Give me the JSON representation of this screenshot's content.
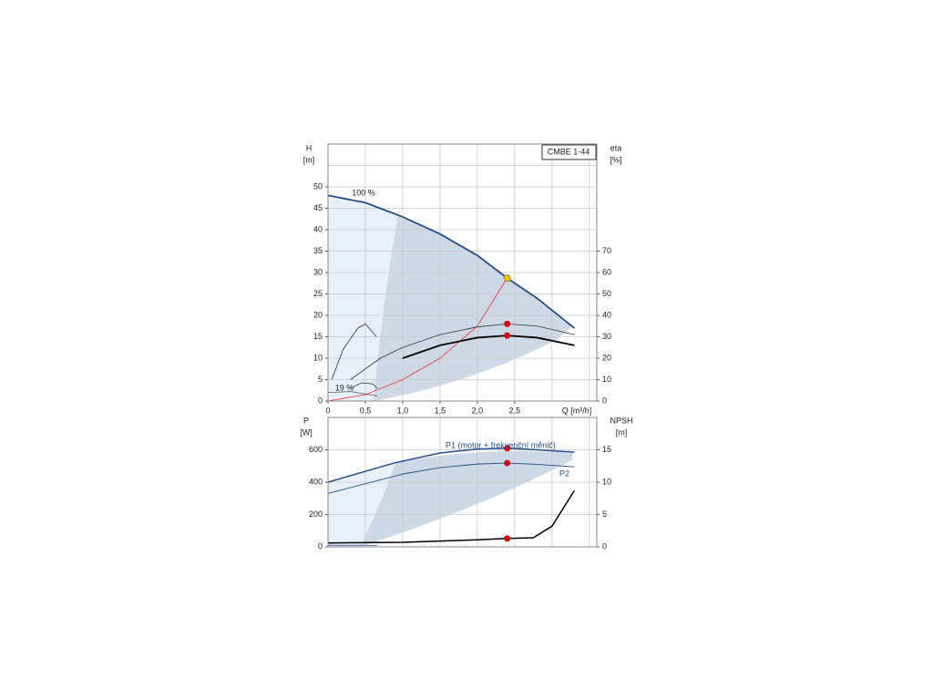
{
  "chart_data": [
    {
      "type": "line",
      "title": "CMBE 1-44",
      "y_label": "H",
      "y_unit": "[m]",
      "y2_label": "eta",
      "y2_unit": "[%]",
      "x_label": "Q [m³/h]",
      "xlim": [
        0,
        3.6
      ],
      "xgrid": [
        0,
        0.5,
        1.0,
        1.5,
        2.0,
        2.5,
        3.0,
        3.5
      ],
      "xticks": [
        0,
        {
          "value": 0.5,
          "label": "0,5"
        },
        {
          "value": 1.0,
          "label": "1,0"
        },
        {
          "value": 1.5,
          "label": "1,5"
        },
        {
          "value": 2.0,
          "label": "2,0"
        },
        {
          "value": 2.5,
          "label": "2,5"
        }
      ],
      "ylim": [
        0,
        60
      ],
      "yticks": [
        0,
        5,
        10,
        15,
        20,
        25,
        30,
        35,
        40,
        45,
        50
      ],
      "ygrid": [
        5,
        10,
        15,
        20,
        25,
        30,
        35,
        40,
        45,
        50,
        55
      ],
      "y2lim": [
        0,
        120
      ],
      "y2ticks": [
        0,
        10,
        20,
        30,
        40,
        50,
        60,
        70
      ],
      "annotations": [
        "100 %",
        "19 %"
      ],
      "series": [
        {
          "color": "#1f4e8c",
          "width": 1.8,
          "x": [
            0,
            0.5,
            1.0,
            1.5,
            2.0,
            2.4,
            2.8,
            3.3
          ],
          "values": [
            48,
            46.3,
            43,
            39,
            34,
            28.7,
            24,
            17
          ]
        },
        {
          "color": "#555555",
          "width": 0.8,
          "x": [
            0,
            0.3,
            0.66
          ],
          "values": [
            2,
            2.2,
            1.2
          ]
        },
        {
          "color": "#e33",
          "width": 0.8,
          "x": [
            0,
            0.5,
            1.0,
            1.5,
            2.0,
            2.4
          ],
          "values": [
            0,
            1.5,
            5,
            10,
            17.5,
            28.7
          ]
        },
        {
          "color": "#333333",
          "width": 0.8,
          "axis": "y2",
          "x": [
            0.3,
            0.7,
            1.0,
            1.5,
            2.0,
            2.4,
            2.8,
            3.3
          ],
          "values": [
            10,
            20,
            25,
            31,
            34.6,
            36,
            35,
            31
          ]
        },
        {
          "color": "#000000",
          "width": 1.8,
          "axis": "y2",
          "x": [
            1.0,
            1.5,
            2.0,
            2.4,
            2.8,
            3.3
          ],
          "values": [
            20,
            26,
            29.6,
            30.6,
            29.6,
            26
          ]
        },
        {
          "color": "#333333",
          "width": 0.8,
          "axis": "y2",
          "x": [
            0.05,
            0.2,
            0.4,
            0.5,
            0.65
          ],
          "values": [
            10,
            24,
            34,
            36,
            30
          ]
        },
        {
          "color": "#333333",
          "width": 0.8,
          "axis": "y2",
          "x": [
            0.3,
            0.45,
            0.6,
            0.66
          ],
          "values": [
            6,
            8.5,
            8,
            6
          ]
        }
      ],
      "points": [
        {
          "color": "#f5c400",
          "x": 2.4,
          "y": 28.7
        },
        {
          "color": "#e00000",
          "axis": "y2",
          "x": 2.4,
          "y": 36
        },
        {
          "color": "#e00000",
          "axis": "y2",
          "x": 2.4,
          "y": 30.6
        }
      ]
    },
    {
      "type": "line",
      "y_label": "P",
      "y_unit": "[W]",
      "y2_label": "NPSH",
      "y2_unit": "[m]",
      "xlim": [
        0,
        3.6
      ],
      "xgrid": [
        0,
        0.5,
        1.0,
        1.5,
        2.0,
        2.5,
        3.0,
        3.5
      ],
      "ylim": [
        0,
        800
      ],
      "yticks": [
        0,
        200,
        400,
        600
      ],
      "ygrid": [
        200,
        400,
        600
      ],
      "y2lim": [
        0,
        20
      ],
      "y2ticks": [
        0,
        5,
        10,
        15
      ],
      "annotations": [
        "P1 (motor + frekvenční měnič)",
        "P2"
      ],
      "series": [
        {
          "color": "#1f4e8c",
          "width": 1.5,
          "x": [
            0,
            0.9,
            1.5,
            2.0,
            2.4,
            2.8,
            3.3
          ],
          "values": [
            400,
            520,
            580,
            605,
            610,
            600,
            585
          ]
        },
        {
          "color": "#1f4e8c",
          "width": 0.9,
          "x": [
            0,
            1.0,
            1.5,
            2.0,
            2.4,
            2.8,
            3.3
          ],
          "values": [
            330,
            450,
            490,
            512,
            518,
            510,
            495
          ]
        },
        {
          "color": "#000000",
          "width": 1.5,
          "axis": "y2",
          "x": [
            0,
            1.0,
            2.0,
            2.4,
            2.75,
            3.0,
            3.3
          ],
          "values": [
            0.6,
            0.7,
            1.1,
            1.3,
            1.4,
            3.2,
            8.7
          ]
        },
        {
          "color": "#1f4e8c",
          "width": 0.8,
          "x": [
            0,
            0.66
          ],
          "values": [
            10,
            10
          ]
        }
      ],
      "points": [
        {
          "color": "#e00000",
          "x": 2.4,
          "y": 610
        },
        {
          "color": "#e00000",
          "x": 2.4,
          "y": 518
        },
        {
          "color": "#e00000",
          "axis": "y2",
          "x": 2.4,
          "y": 1.3
        }
      ]
    }
  ]
}
